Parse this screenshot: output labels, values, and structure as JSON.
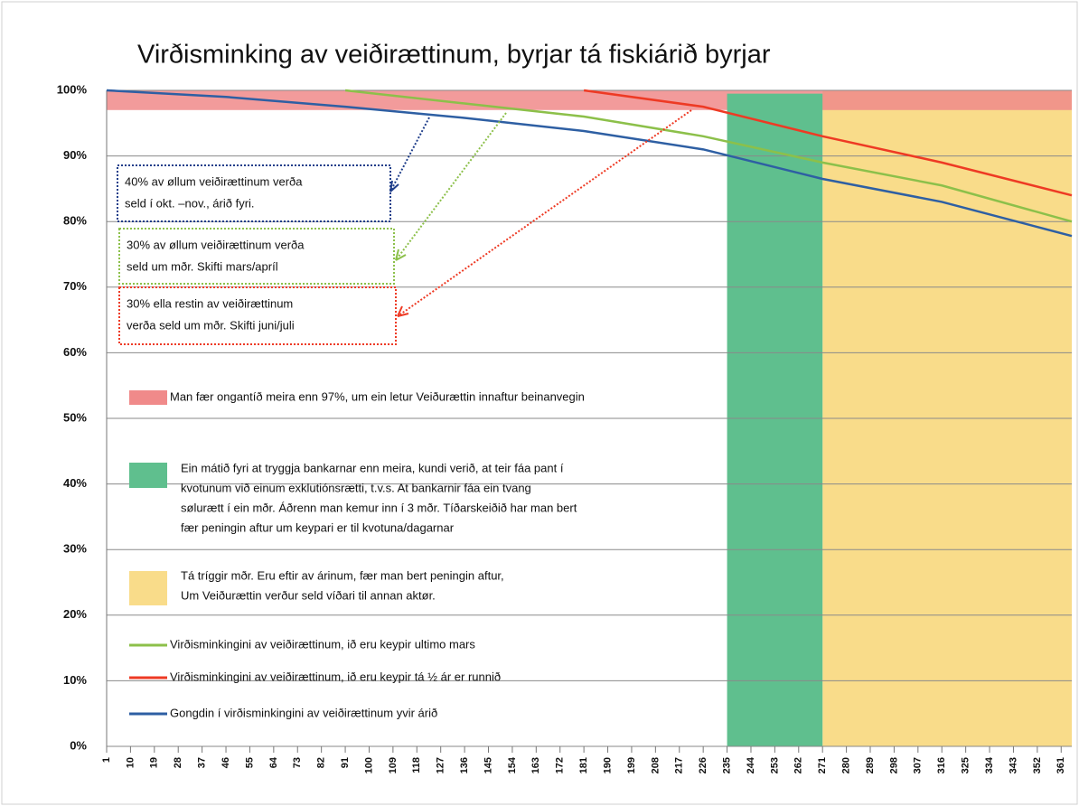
{
  "chart_data": {
    "type": "line",
    "title": "Virðisminking av veiðirættinum, byrjar tá fiskiárið byrjar",
    "x": [
      1,
      46,
      91,
      136,
      181,
      226,
      271,
      316,
      365
    ],
    "series": [
      {
        "name": "Virðisminkingini av veiðirættinum, ið eru keypir ultimo mars",
        "color": "#8cc04a",
        "values": [
          null,
          null,
          100,
          98,
          96,
          93,
          89,
          85.5,
          80
        ]
      },
      {
        "name": "Virðisminkingini av veiðirættinum, ið eru keypir tá ½ ár er runnið",
        "color": "#ee3a24",
        "values": [
          null,
          null,
          null,
          null,
          100,
          97.5,
          93,
          89,
          84
        ]
      },
      {
        "name": "Gongdin í virðisminkingini av veiðirættinum yvir árið",
        "color": "#2e5fa3",
        "values": [
          100,
          99,
          97.5,
          95.8,
          93.8,
          91,
          86.5,
          83,
          77.8
        ]
      }
    ],
    "bands": [
      {
        "color": "#f9dc8a",
        "x": [
          271,
          365
        ],
        "y": [
          0,
          100
        ],
        "label": [
          "Tá tríggir mðr. Eru eftir av árinum, fær man bert peningin aftur,",
          "Um Veiðurættin verður seld víðari til annan aktør."
        ]
      },
      {
        "color": "#f08a8a",
        "x": [
          1,
          365
        ],
        "y": [
          97,
          100
        ],
        "label": [
          "Man fær ongantíð  meira enn 97%, um ein letur Veiðurættin innaftur beinanvegin"
        ]
      },
      {
        "color": "#5fbf8e",
        "x": [
          235,
          271
        ],
        "y": [
          0,
          99.5
        ],
        "label": [
          "Ein mátið fyri at tryggja bankarnar enn meira, kundi verið, at teir fáa pant í",
          "kvotunum við einum exklutiónsrætti,  t.v.s. At bankarnir fáa ein tvang",
          "sølurætt í ein mðr. Áðrenn man kemur inn í 3 mðr. Tíðarskeiðið har man bert",
          "fær peningin aftur um keypari er til kvotuna/dagarnar"
        ]
      }
    ],
    "annotations": [
      {
        "color": "#1f3e8a",
        "lines": [
          "40% av øllum veiðirættinum  verða",
          "seld í okt. –nov.,  árið fyri."
        ]
      },
      {
        "color": "#8cc04a",
        "lines": [
          "30% av øllum veiðirættinum  verða",
          "seld um mðr. Skifti mars/apríl"
        ]
      },
      {
        "color": "#ee3a24",
        "lines": [
          "30% ella restin av veiðirættinum",
          "verða seld um mðr. Skifti juni/juli"
        ]
      }
    ],
    "xlim": [
      1,
      365
    ],
    "xticks": [
      1,
      10,
      19,
      28,
      37,
      46,
      55,
      64,
      73,
      82,
      91,
      100,
      109,
      118,
      127,
      136,
      145,
      154,
      163,
      172,
      181,
      190,
      199,
      208,
      217,
      226,
      235,
      244,
      253,
      262,
      271,
      280,
      289,
      298,
      307,
      316,
      325,
      334,
      343,
      352,
      361
    ],
    "ylim": [
      0,
      100
    ],
    "yticks": [
      {
        "value": 0,
        "label": "0%"
      },
      {
        "value": 10,
        "label": "10%"
      },
      {
        "value": 20,
        "label": "20%"
      },
      {
        "value": 30,
        "label": "30%"
      },
      {
        "value": 40,
        "label": "40%"
      },
      {
        "value": 50,
        "label": "50%"
      },
      {
        "value": 60,
        "label": "60%"
      },
      {
        "value": 70,
        "label": "70%"
      },
      {
        "value": 80,
        "label": "80%"
      },
      {
        "value": 90,
        "label": "90%"
      },
      {
        "value": 100,
        "label": "100%"
      }
    ],
    "grid": true
  }
}
